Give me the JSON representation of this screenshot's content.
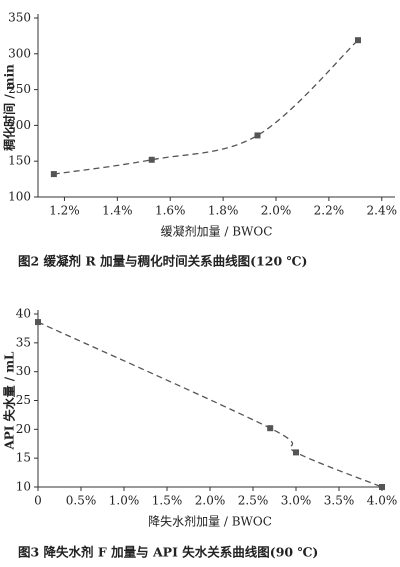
{
  "chart_data": [
    {
      "type": "line",
      "title": "图2  缓凝剂 R 加量与稠化时间关系曲线图(120 ℃)",
      "x_label": "缓凝剂加量 / BWOC",
      "y_label": "稠化时间 / min",
      "x": [
        1.16,
        1.53,
        1.93,
        2.31
      ],
      "series": [
        {
          "name": "稠化时间",
          "color": "#555555",
          "values": [
            132,
            152,
            186,
            319
          ]
        }
      ],
      "xlim": [
        1.1,
        2.45
      ],
      "ylim": [
        100,
        350
      ],
      "xticks": [
        {
          "value": 1.2,
          "label": "1.2%"
        },
        {
          "value": 1.4,
          "label": "1.4%"
        },
        {
          "value": 1.6,
          "label": "1.6%"
        },
        {
          "value": 1.8,
          "label": "1.8%"
        },
        {
          "value": 2.0,
          "label": "2.0%"
        },
        {
          "value": 2.2,
          "label": "2.2%"
        },
        {
          "value": 2.4,
          "label": "2.4%"
        }
      ],
      "yticks": [
        100,
        150,
        200,
        250,
        300,
        350
      ]
    },
    {
      "type": "line",
      "title": "图3  降失水剂 F 加量与 API 失水关系曲线图(90 ℃)",
      "x_label": "降失水剂加量 / BWOC",
      "y_label": "API 失水量 / mL",
      "x": [
        0,
        2.7,
        3.0,
        4.0
      ],
      "series": [
        {
          "name": "API 失水量",
          "color": "#555555",
          "values": [
            38.6,
            20.2,
            16.0,
            10
          ]
        }
      ],
      "xlim": [
        0,
        4.0
      ],
      "ylim": [
        10,
        40
      ],
      "xticks": [
        0,
        {
          "value": 0.5,
          "label": "0.5%"
        },
        {
          "value": 1.0,
          "label": "1.0%"
        },
        {
          "value": 1.5,
          "label": "1.5%"
        },
        {
          "value": 2.0,
          "label": "2.0%"
        },
        {
          "value": 2.5,
          "label": "2.5%"
        },
        {
          "value": 3.0,
          "label": "3.0%"
        },
        {
          "value": 3.5,
          "label": "3.5%"
        },
        {
          "value": 4.0,
          "label": "4.0%"
        }
      ],
      "yticks": [
        10,
        15,
        20,
        25,
        30,
        35,
        40
      ]
    }
  ]
}
